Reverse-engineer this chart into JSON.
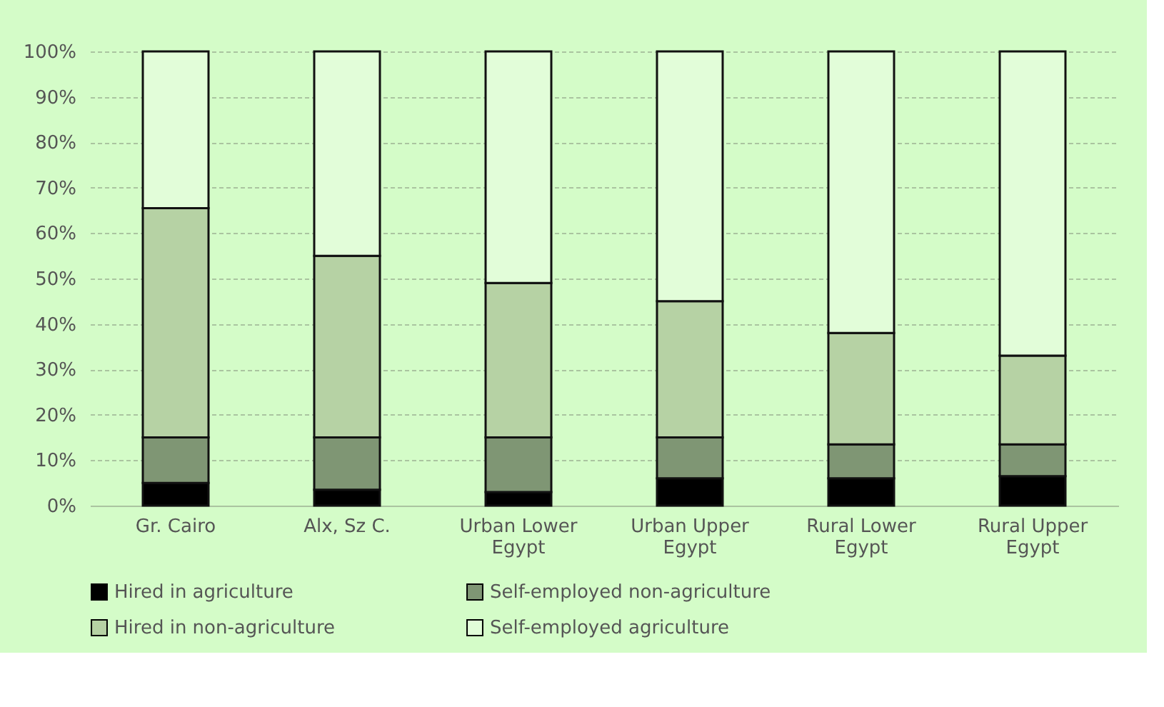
{
  "chart_data": {
    "type": "bar",
    "stacked": true,
    "categories": [
      "Gr. Cairo",
      "Alx, Sz C.",
      "Urban Lower Egypt",
      "Urban Upper Egypt",
      "Rural Lower Egypt",
      "Rural Upper Egypt"
    ],
    "series": [
      {
        "name": "Hired in agriculture",
        "color": "#000000",
        "values": [
          5,
          3.5,
          3,
          6,
          6,
          6.5
        ]
      },
      {
        "name": "Self-employed non-agriculture",
        "color": "#7f9674",
        "values": [
          10,
          11.5,
          12,
          9,
          7.5,
          7
        ]
      },
      {
        "name": "Hired in non-agriculture",
        "color": "#b6d2a4",
        "values": [
          50.5,
          40,
          34,
          30,
          24.5,
          19.5
        ]
      },
      {
        "name": "Self-employed agriculture",
        "color": "#e2fdd9",
        "values": [
          34.5,
          45,
          51,
          55,
          62,
          67
        ]
      }
    ],
    "ylim": [
      0,
      100
    ],
    "yticks": [
      {
        "value": 0,
        "label": "0%"
      },
      {
        "value": 10,
        "label": "10%"
      },
      {
        "value": 20,
        "label": "20%"
      },
      {
        "value": 30,
        "label": "30%"
      },
      {
        "value": 40,
        "label": "40%"
      },
      {
        "value": 50,
        "label": "50%"
      },
      {
        "value": 60,
        "label": "60%"
      },
      {
        "value": 70,
        "label": "70%"
      },
      {
        "value": 80,
        "label": "80%"
      },
      {
        "value": 90,
        "label": "90%"
      },
      {
        "value": 100,
        "label": "100%"
      }
    ],
    "grid": "y",
    "legend": "bottom"
  }
}
